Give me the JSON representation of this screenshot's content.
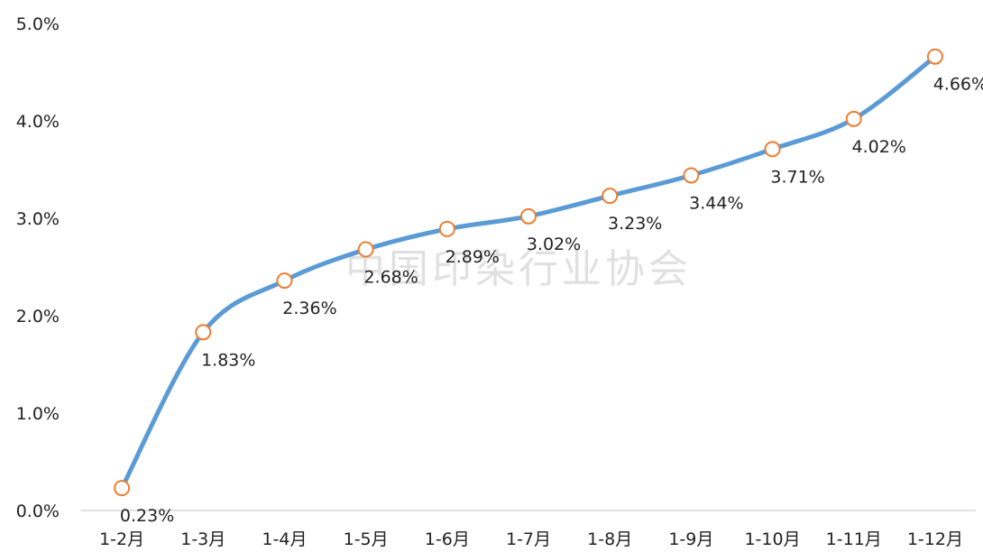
{
  "watermark": "中国印染行业协会",
  "chart_data": {
    "type": "line",
    "title": "",
    "xlabel": "",
    "ylabel": "",
    "categories": [
      "1-2月",
      "1-3月",
      "1-4月",
      "1-5月",
      "1-6月",
      "1-7月",
      "1-8月",
      "1-9月",
      "1-10月",
      "1-11月",
      "1-12月"
    ],
    "values": [
      0.23,
      1.83,
      2.36,
      2.68,
      2.89,
      3.02,
      3.23,
      3.44,
      3.71,
      4.02,
      4.66
    ],
    "data_labels": [
      "0.23%",
      "1.83%",
      "2.36%",
      "2.68%",
      "2.89%",
      "3.02%",
      "3.23%",
      "3.44%",
      "3.71%",
      "4.02%",
      "4.66%"
    ],
    "y_ticks": [
      0,
      1,
      2,
      3,
      4,
      5
    ],
    "y_tick_labels": [
      "0.0%",
      "1.0%",
      "2.0%",
      "3.0%",
      "4.0%",
      "5.0%"
    ],
    "ylim": [
      0,
      5
    ],
    "grid": false,
    "legend": "none",
    "smooth": true,
    "line_color": "#5b9bd5",
    "marker_stroke_color": "#ed7d31",
    "marker_fill_color": "#ffffff",
    "axis_color": "#d9d9d9"
  }
}
